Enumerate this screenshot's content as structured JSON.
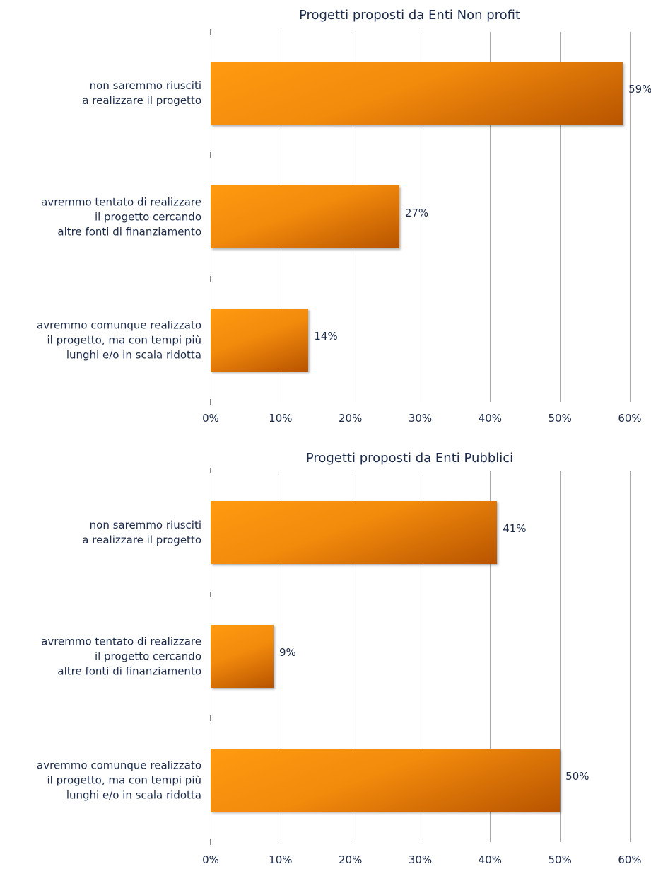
{
  "chart_data": [
    {
      "type": "bar",
      "orientation": "horizontal",
      "title": "Progetti proposti da Enti Non profit",
      "categories": [
        "non saremmo riusciti\na realizzare il progetto",
        "avremmo tentato di realizzare\nil progetto cercando\naltre fonti di finanziamento",
        "avremmo comunque realizzato\nil progetto, ma con tempi più\nlunghi e/o in scala ridotta"
      ],
      "values": [
        59,
        27,
        14
      ],
      "value_labels": [
        "59%",
        "27%",
        "14%"
      ],
      "color": "#f28a0c",
      "xlim": [
        0,
        60
      ],
      "xticks": [
        {
          "value": 0,
          "label": "0%"
        },
        {
          "value": 10,
          "label": "10%"
        },
        {
          "value": 20,
          "label": "20%"
        },
        {
          "value": 30,
          "label": "30%"
        },
        {
          "value": 40,
          "label": "40%"
        },
        {
          "value": 50,
          "label": "50%"
        },
        {
          "value": 60,
          "label": "60%"
        }
      ],
      "grid": true
    },
    {
      "type": "bar",
      "orientation": "horizontal",
      "title": "Progetti proposti da Enti Pubblici",
      "categories": [
        "non saremmo riusciti\na realizzare il progetto",
        "avremmo tentato di realizzare\nil progetto cercando\naltre fonti di finanziamento",
        "avremmo comunque realizzato\nil progetto, ma con tempi più\nlunghi e/o in scala ridotta"
      ],
      "values": [
        41,
        9,
        50
      ],
      "value_labels": [
        "41%",
        "9%",
        "50%"
      ],
      "color": "#f28a0c",
      "xlim": [
        0,
        60
      ],
      "xticks": [
        {
          "value": 0,
          "label": "0%"
        },
        {
          "value": 10,
          "label": "10%"
        },
        {
          "value": 20,
          "label": "20%"
        },
        {
          "value": 30,
          "label": "30%"
        },
        {
          "value": 40,
          "label": "40%"
        },
        {
          "value": 50,
          "label": "50%"
        },
        {
          "value": 60,
          "label": "60%"
        }
      ],
      "grid": true
    }
  ]
}
